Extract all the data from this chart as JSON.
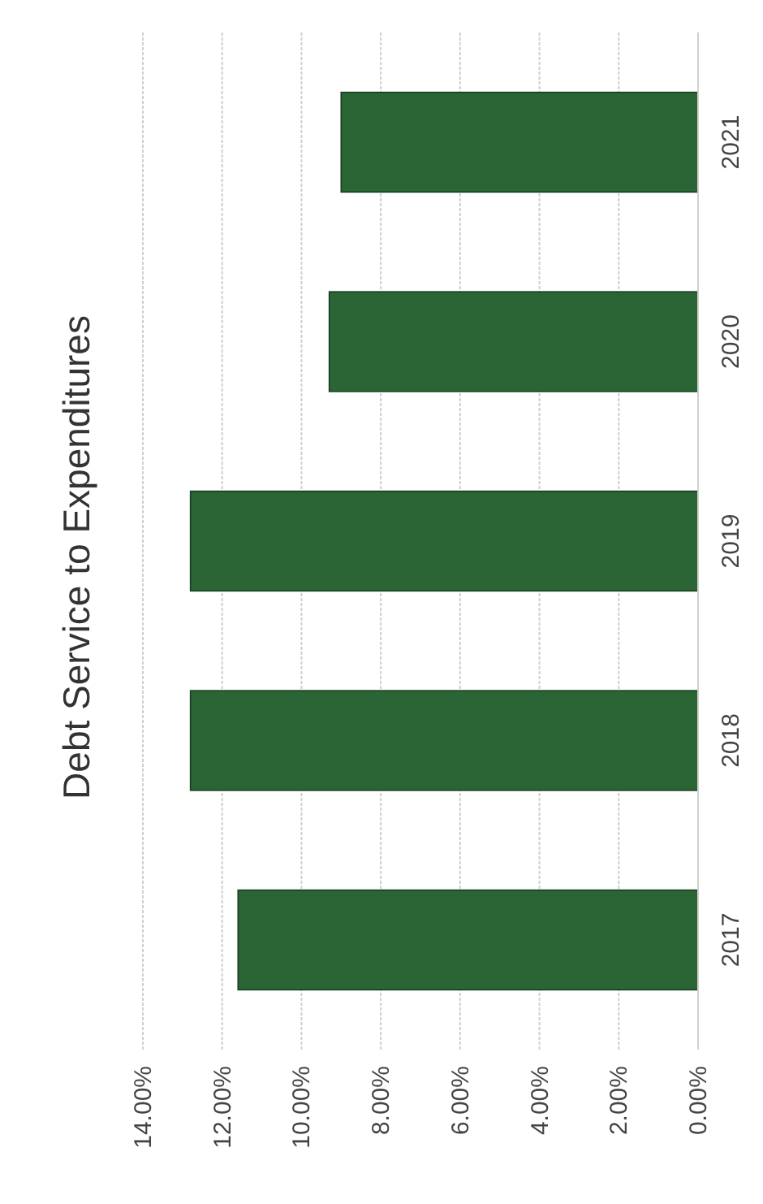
{
  "chart_data": {
    "type": "bar",
    "orientation": "horizontal",
    "title": "Debt Service to Expenditures",
    "categories": [
      "2021",
      "2020",
      "2019",
      "2018",
      "2017"
    ],
    "values": [
      9.0,
      9.3,
      12.8,
      12.8,
      11.6
    ],
    "color": "#2b6535",
    "xlim": [
      14,
      0
    ],
    "xticks": [
      {
        "value": 14,
        "label": "14.00%"
      },
      {
        "value": 12,
        "label": "12.00%"
      },
      {
        "value": 10,
        "label": "10.00%"
      },
      {
        "value": 8,
        "label": "8.00%"
      },
      {
        "value": 6,
        "label": "6.00%"
      },
      {
        "value": 4,
        "label": "4.00%"
      },
      {
        "value": 2,
        "label": "2.00%"
      },
      {
        "value": 0,
        "label": "0.00%"
      }
    ],
    "grid": "x"
  }
}
